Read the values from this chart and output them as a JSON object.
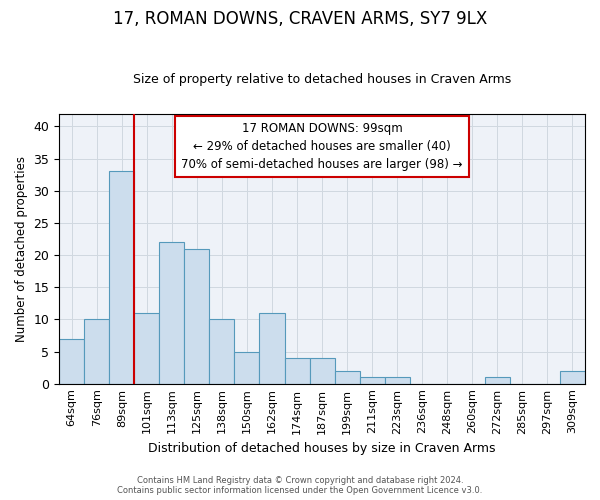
{
  "title": "17, ROMAN DOWNS, CRAVEN ARMS, SY7 9LX",
  "subtitle": "Size of property relative to detached houses in Craven Arms",
  "xlabel": "Distribution of detached houses by size in Craven Arms",
  "ylabel": "Number of detached properties",
  "categories": [
    "64sqm",
    "76sqm",
    "89sqm",
    "101sqm",
    "113sqm",
    "125sqm",
    "138sqm",
    "150sqm",
    "162sqm",
    "174sqm",
    "187sqm",
    "199sqm",
    "211sqm",
    "223sqm",
    "236sqm",
    "248sqm",
    "260sqm",
    "272sqm",
    "285sqm",
    "297sqm",
    "309sqm"
  ],
  "values": [
    7,
    10,
    33,
    11,
    22,
    21,
    10,
    5,
    11,
    4,
    4,
    2,
    1,
    1,
    0,
    0,
    0,
    1,
    0,
    0,
    2
  ],
  "bar_color": "#ccdded",
  "bar_edge_color": "#5599bb",
  "grid_color": "#d0d8e0",
  "vline_color": "#cc0000",
  "vline_x": 2.5,
  "annotation_text_line1": "17 ROMAN DOWNS: 99sqm",
  "annotation_text_line2": "← 29% of detached houses are smaller (40)",
  "annotation_text_line3": "70% of semi-detached houses are larger (98) →",
  "ylim": [
    0,
    42
  ],
  "yticks": [
    0,
    5,
    10,
    15,
    20,
    25,
    30,
    35,
    40
  ],
  "title_fontsize": 12,
  "subtitle_fontsize": 9,
  "footer_line1": "Contains HM Land Registry data © Crown copyright and database right 2024.",
  "footer_line2": "Contains public sector information licensed under the Open Government Licence v3.0.",
  "bg_color": "#ffffff",
  "plot_bg_color": "#eef2f8"
}
